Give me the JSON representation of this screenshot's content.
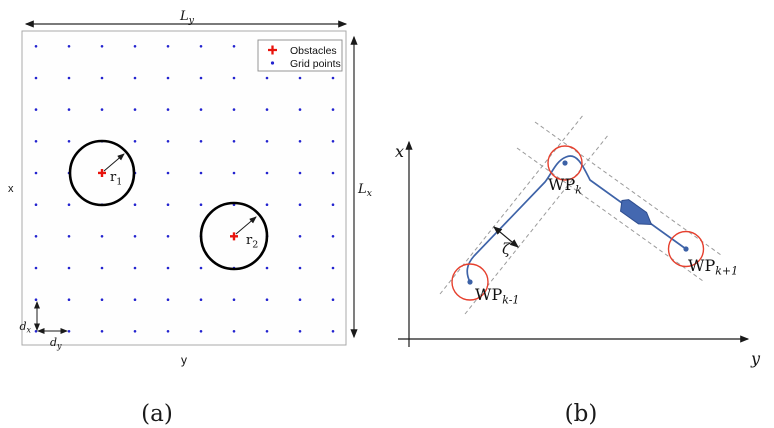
{
  "figure_a": {
    "caption": "(a)",
    "x_axis_label": "x",
    "y_axis_label": "y",
    "width_label": {
      "base": "L",
      "sub": "y"
    },
    "height_label": {
      "base": "L",
      "sub": "x"
    },
    "row_spacing_label": {
      "base": "d",
      "sub": "x"
    },
    "col_spacing_label": {
      "base": "d",
      "sub": "y"
    },
    "legend": {
      "items": [
        {
          "name": "obstacles",
          "symbol": "plus",
          "label": "Obstacles",
          "color": "#e8130c"
        },
        {
          "name": "grid-points",
          "symbol": "dot",
          "label": "Grid points",
          "color": "#2323cf"
        }
      ]
    },
    "grid": {
      "rows": 10,
      "cols": 10
    },
    "obstacles": [
      {
        "col": 3,
        "row": 5,
        "radius_label": {
          "base": "r",
          "sub": "1"
        }
      },
      {
        "col": 7,
        "row": 7,
        "radius_label": {
          "base": "r",
          "sub": "2"
        }
      }
    ],
    "obstacle_circle_color": "#000000"
  },
  "figure_b": {
    "caption": "(b)",
    "x_axis_label": "x",
    "y_axis_label": "y",
    "corridor_width_label": "ζ",
    "waypoints": [
      {
        "label_base": "WP",
        "label_sub": "k-1"
      },
      {
        "label_base": "WP",
        "label_sub": "k"
      },
      {
        "label_base": "WP",
        "label_sub": "k+1"
      }
    ],
    "colors": {
      "path": "#3e63a8",
      "waypoint_dot": "#3c61a6",
      "waypoint_circle": "#e6402e",
      "vehicle_fill": "#4468b0",
      "vehicle_stroke": "#2e4d8e",
      "corridor_dash": "#9b9b9b",
      "axis": "#1a1a1a"
    }
  }
}
